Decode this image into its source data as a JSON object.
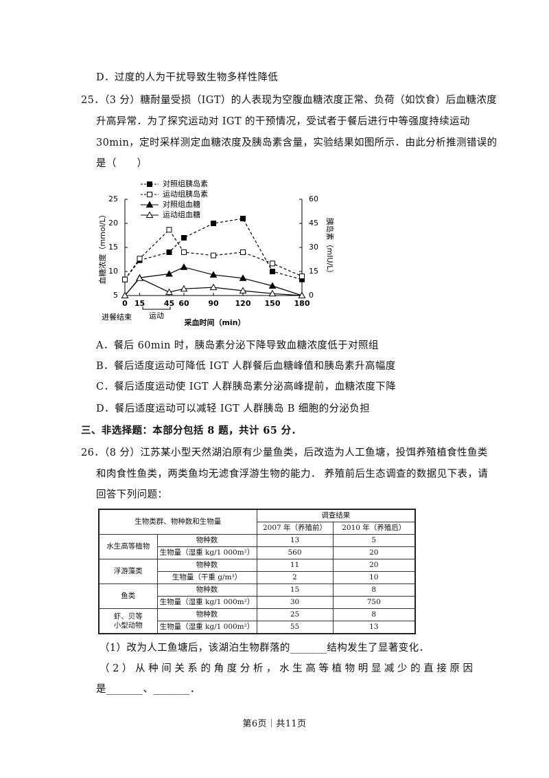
{
  "q24": {
    "option_d": "D．过度的人为干扰导致生物多样性降低"
  },
  "q25": {
    "lines": [
      "25．（3 分）糖耐量受损（IGT）的人表现为空腹血糖浓度正常、负荷（如饮食）后血糖浓度",
      "升高异常．为了探究运动对 IGT 的干预情况，受试者于餐后进行中等强度持续运动",
      "30min，定时采样测定血糖浓度及胰岛素含量，实验结果如图所示．由此分析推测错误的",
      "是（　　）"
    ],
    "options": [
      "A．餐后 60min 时，胰岛素分泌下降导致血糖浓度低于对照组",
      "B．餐后适度运动可降低 IGT 人群餐后血糖峰值和胰岛素升高幅度",
      "C．餐后适度运动使 IGT 人群胰岛素分泌高峰提前，血糖浓度下降",
      "D．餐后适度运动可以减轻 IGT 人群胰岛 B 细胞的分泌负担"
    ]
  },
  "chart_data": {
    "type": "line",
    "x_label": "采血时间（min）",
    "y_label": "血糖浓度（mmol/L）",
    "y2_label": "胰岛素（mIU/L）",
    "annotations": [
      "进餐结束",
      "运动"
    ],
    "x": [
      0,
      15,
      45,
      60,
      90,
      120,
      150,
      180
    ],
    "xlim": [
      0,
      180
    ],
    "xticks": [
      0,
      15,
      45,
      60,
      90,
      120,
      150,
      180
    ],
    "ylim": [
      5,
      25
    ],
    "yticks": [
      5,
      10,
      15,
      20,
      25
    ],
    "y2lim": [
      0,
      60
    ],
    "y2ticks": [
      0,
      15,
      30,
      45,
      60
    ],
    "legend": "top-left",
    "series": [
      {
        "name": "对照组胰岛素",
        "color": "#000000",
        "axis": "y2",
        "dash": true,
        "marker": "square",
        "filled": true,
        "values": [
          10,
          22,
          27,
          36,
          45,
          48,
          15,
          10
        ]
      },
      {
        "name": "运动组胰岛素",
        "color": "#000000",
        "axis": "y2",
        "dash": true,
        "marker": "square",
        "filled": false,
        "values": [
          10,
          23,
          41,
          27,
          25,
          27,
          20,
          12
        ]
      },
      {
        "name": "对照组血糖",
        "color": "#000000",
        "dash": false,
        "marker": "triangle",
        "filled": true,
        "values": [
          5,
          8.7,
          9.5,
          10.9,
          9.3,
          8.6,
          7,
          5
        ]
      },
      {
        "name": "运动组血糖",
        "color": "#000000",
        "dash": false,
        "marker": "triangle",
        "filled": false,
        "values": [
          5,
          8.6,
          5.7,
          6.4,
          6.7,
          6,
          5.4,
          5
        ]
      }
    ]
  },
  "section3": "三、非选择题：本部分包括 8 题，共计 65 分．",
  "q26": {
    "lines": [
      "26．（8 分）江苏某小型天然湖泊原有少量鱼类，后改造为人工鱼塘，投饵养殖植食性鱼类",
      "和肉食性鱼类，两类鱼均无滤食浮游生物的能力． 养殖前后生态调查的数据见下表，请",
      "回答下列问题："
    ],
    "table": {
      "corner": "生物类群、物种数和生物量",
      "results": "调查结果",
      "years": [
        "2007 年（养殖前）",
        "2010 年（养殖后）"
      ],
      "groups": [
        {
          "name": [
            "水生高等植物"
          ],
          "rows": [
            {
              "label": "物种数",
              "values": [
                13,
                5
              ]
            },
            {
              "label": "生物量（湿重 kg/1 000m²）",
              "values": [
                560,
                20
              ]
            }
          ]
        },
        {
          "name": [
            "浮游藻类"
          ],
          "rows": [
            {
              "label": "物种数",
              "values": [
                11,
                20
              ]
            },
            {
              "label": "生物量（干重 g/m³）",
              "values": [
                2,
                10
              ]
            }
          ]
        },
        {
          "name": [
            "鱼类"
          ],
          "rows": [
            {
              "label": "物种数",
              "values": [
                15,
                8
              ]
            },
            {
              "label": "生物量（湿重 kg/1 000m²）",
              "values": [
                30,
                750
              ]
            }
          ]
        },
        {
          "name": [
            "虾、贝等",
            "小型动物"
          ],
          "rows": [
            {
              "label": "物种数",
              "values": [
                25,
                8
              ]
            },
            {
              "label": "生物量（湿重 kg/1 000m²）",
              "values": [
                55,
                13
              ]
            }
          ]
        }
      ]
    },
    "sub1": "（1）改为人工鱼塘后，该湖泊生物群落的_______结构发生了显著变化．",
    "sub2": [
      "（2）从种间关系的角度分析，水生高等植物明显减少的直接原因",
      "是_______、_______．"
    ]
  },
  "footer": "第6页｜共11页"
}
